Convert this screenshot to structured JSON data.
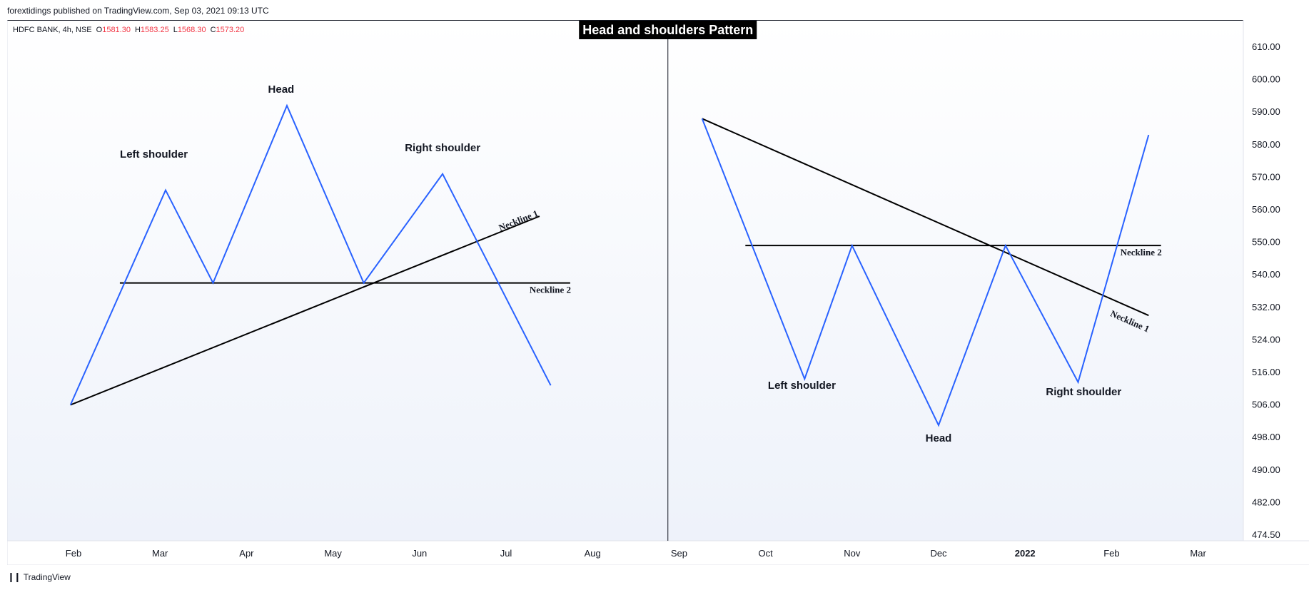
{
  "publish_line": "forextidings published on TradingView.com, Sep 03, 2021 09:13 UTC",
  "footer": {
    "brand": "TradingView",
    "logo_icon": "tradingview-logo-icon"
  },
  "symbol_bar": {
    "symbol": "HDFC BANK, 4h, NSE",
    "open_label": "O",
    "open": "1581.30",
    "high_label": "H",
    "high": "1583.25",
    "low_label": "L",
    "low": "1568.30",
    "close_label": "C",
    "close": "1573.20"
  },
  "colors": {
    "line": "#2962ff",
    "neckline": "#000000",
    "price_red": "#f23645",
    "title_bg": "#000000",
    "title_fg": "#ffffff",
    "bg_gradient_top": "#ffffff",
    "bg_gradient_bottom": "#eef2fa"
  },
  "chart_data": {
    "type": "line",
    "title": "Head and shoulders Pattern",
    "x_tick_labels": [
      "Feb",
      "Mar",
      "Apr",
      "May",
      "Jun",
      "Jul",
      "Aug",
      "Sep",
      "Oct",
      "Nov",
      "Dec",
      "2022",
      "Feb",
      "Mar"
    ],
    "y_tick_labels": [
      "610.00",
      "600.00",
      "590.00",
      "580.00",
      "570.00",
      "560.00",
      "550.00",
      "540.00",
      "532.00",
      "524.00",
      "516.00",
      "506.00",
      "498.00",
      "490.00",
      "482.00",
      "474.50"
    ],
    "y_axis_position": "right",
    "grid": false,
    "patterns": [
      {
        "name": "head-and-shoulders",
        "points": [
          {
            "x": "2021-01-31",
            "y": 506
          },
          {
            "x": "2021-03-03",
            "y": 566
          },
          {
            "x": "2021-03-20",
            "y": 538
          },
          {
            "x": "2021-04-15",
            "y": 592
          },
          {
            "x": "2021-05-12",
            "y": 538
          },
          {
            "x": "2021-06-09",
            "y": 571
          },
          {
            "x": "2021-07-17",
            "y": 512
          }
        ],
        "necklines": [
          {
            "label": "Neckline 1",
            "from": {
              "x": "2021-01-31",
              "y": 506
            },
            "to": {
              "x": "2021-07-13",
              "y": 558
            }
          },
          {
            "label": "Neckline 2",
            "from": {
              "x": "2021-02-16",
              "y": 538
            },
            "to": {
              "x": "2021-07-24",
              "y": 538
            }
          }
        ],
        "annotations": [
          {
            "text": "Left shoulder",
            "x": "2021-02-27",
            "y": 576
          },
          {
            "text": "Head",
            "x": "2021-04-13",
            "y": 596
          },
          {
            "text": "Right shoulder",
            "x": "2021-06-09",
            "y": 578
          }
        ]
      },
      {
        "name": "inverse-head-and-shoulders",
        "points": [
          {
            "x": "2021-09-09",
            "y": 588
          },
          {
            "x": "2021-10-15",
            "y": 514
          },
          {
            "x": "2021-11-01",
            "y": 549
          },
          {
            "x": "2021-12-01",
            "y": 501
          },
          {
            "x": "2021-12-25",
            "y": 549
          },
          {
            "x": "2022-01-20",
            "y": 513
          },
          {
            "x": "2022-02-13",
            "y": 583
          }
        ],
        "necklines": [
          {
            "label": "Neckline 1",
            "from": {
              "x": "2021-09-09",
              "y": 588
            },
            "to": {
              "x": "2022-02-13",
              "y": 530
            }
          },
          {
            "label": "Neckline 2",
            "from": {
              "x": "2021-09-24",
              "y": 549
            },
            "to": {
              "x": "2022-02-17",
              "y": 549
            }
          }
        ],
        "annotations": [
          {
            "text": "Left shoulder",
            "x": "2021-10-14",
            "y": 511
          },
          {
            "text": "Head",
            "x": "2021-12-01",
            "y": 497
          },
          {
            "text": "Right shoulder",
            "x": "2022-01-22",
            "y": 509
          }
        ]
      }
    ]
  }
}
